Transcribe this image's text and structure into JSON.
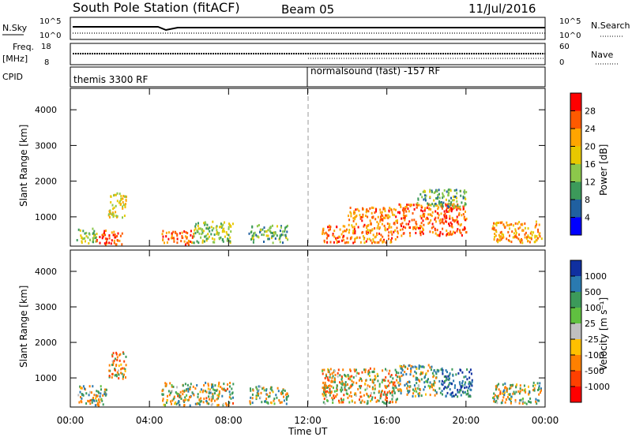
{
  "header": {
    "station": "South Pole Station (fitACF)",
    "beam": "Beam 05",
    "date": "11/Jul/2016"
  },
  "aux_panels": {
    "nsky_label": "N.Sky",
    "nsky_ticks": [
      "10^5",
      "10^0"
    ],
    "nsearch_label": "N.Search",
    "nsearch_ticks": [
      "10^5",
      "10^0"
    ],
    "freq_label_1": "Freq.",
    "freq_label_2": "[MHz]",
    "freq_ticks": [
      "18",
      "8"
    ],
    "nave_label": "Nave",
    "nave_ticks": [
      "60",
      "0"
    ],
    "cpid_label": "CPID",
    "cpid_1": "themis 3300 RF",
    "cpid_2": "normalsound (fast) -157 RF"
  },
  "axes": {
    "xlabel": "Time UT",
    "xticks": [
      "00:00",
      "04:00",
      "08:00",
      "12:00",
      "16:00",
      "20:00",
      "00:00"
    ],
    "ylabel": "Slant Range [km]",
    "yticks": [
      "4000",
      "3000",
      "2000",
      "1000"
    ]
  },
  "colorbars": {
    "power": {
      "label": "Power [dB]",
      "ticks": [
        "28",
        "24",
        "20",
        "16",
        "12",
        "8",
        "4"
      ],
      "colors": [
        "#ff0000",
        "#ff5a00",
        "#ffa500",
        "#e8c800",
        "#8cc84b",
        "#3c9a5a",
        "#2060a0",
        "#0000ff"
      ]
    },
    "velocity": {
      "label": "Velocity [m s⁻¹]",
      "ticks": [
        "1000",
        "500",
        "100",
        "25",
        "-25",
        "-100",
        "-500",
        "-1000"
      ],
      "colors": [
        "#1030a0",
        "#2a7ab0",
        "#3c9a5a",
        "#60c040",
        "#c0c0c0",
        "#ffc000",
        "#ff8000",
        "#ff4000",
        "#ff0000"
      ]
    }
  },
  "chart_data": [
    {
      "type": "heatmap",
      "name": "Power",
      "xrange_hours": [
        0,
        24
      ],
      "yrange_km": [
        180,
        4600
      ],
      "colorscale_range": [
        0,
        32
      ],
      "blobs": [
        {
          "t0": 0.3,
          "t1": 1.3,
          "r0": 250,
          "r1": 700,
          "v": 14
        },
        {
          "t0": 1.3,
          "t1": 2.6,
          "r0": 250,
          "r1": 650,
          "v": 26
        },
        {
          "t0": 1.9,
          "t1": 2.8,
          "r0": 1000,
          "r1": 1750,
          "v": 18
        },
        {
          "t0": 4.6,
          "t1": 6.2,
          "r0": 250,
          "r1": 650,
          "v": 26
        },
        {
          "t0": 6.2,
          "t1": 8.2,
          "r0": 300,
          "r1": 900,
          "v": 14
        },
        {
          "t0": 9.0,
          "t1": 11.0,
          "r0": 300,
          "r1": 800,
          "v": 12
        },
        {
          "t0": 12.7,
          "t1": 14.0,
          "r0": 300,
          "r1": 800,
          "v": 26
        },
        {
          "t0": 14.0,
          "t1": 16.5,
          "r0": 300,
          "r1": 1300,
          "v": 24
        },
        {
          "t0": 16.5,
          "t1": 20.0,
          "r0": 500,
          "r1": 1400,
          "v": 26
        },
        {
          "t0": 17.5,
          "t1": 20.0,
          "r0": 1300,
          "r1": 1800,
          "v": 12
        },
        {
          "t0": 21.3,
          "t1": 23.8,
          "r0": 300,
          "r1": 900,
          "v": 22
        }
      ]
    },
    {
      "type": "heatmap",
      "name": "Velocity",
      "xrange_hours": [
        0,
        24
      ],
      "yrange_km": [
        180,
        4600
      ],
      "colorscale_range": [
        -1000,
        1000
      ],
      "blobs": [
        {
          "t0": 0.3,
          "t1": 1.8,
          "r0": 250,
          "r1": 800,
          "v": 80
        },
        {
          "t0": 1.9,
          "t1": 2.8,
          "r0": 1000,
          "r1": 1750,
          "v": -300
        },
        {
          "t0": 4.6,
          "t1": 8.2,
          "r0": 250,
          "r1": 900,
          "v": 60
        },
        {
          "t0": 9.0,
          "t1": 11.0,
          "r0": 300,
          "r1": 800,
          "v": 100
        },
        {
          "t0": 12.7,
          "t1": 16.5,
          "r0": 300,
          "r1": 1300,
          "v": -150
        },
        {
          "t0": 16.5,
          "t1": 18.5,
          "r0": 500,
          "r1": 1400,
          "v": 200
        },
        {
          "t0": 18.5,
          "t1": 20.3,
          "r0": 500,
          "r1": 1300,
          "v": 800
        },
        {
          "t0": 21.3,
          "t1": 23.8,
          "r0": 300,
          "r1": 900,
          "v": 90
        }
      ]
    }
  ]
}
